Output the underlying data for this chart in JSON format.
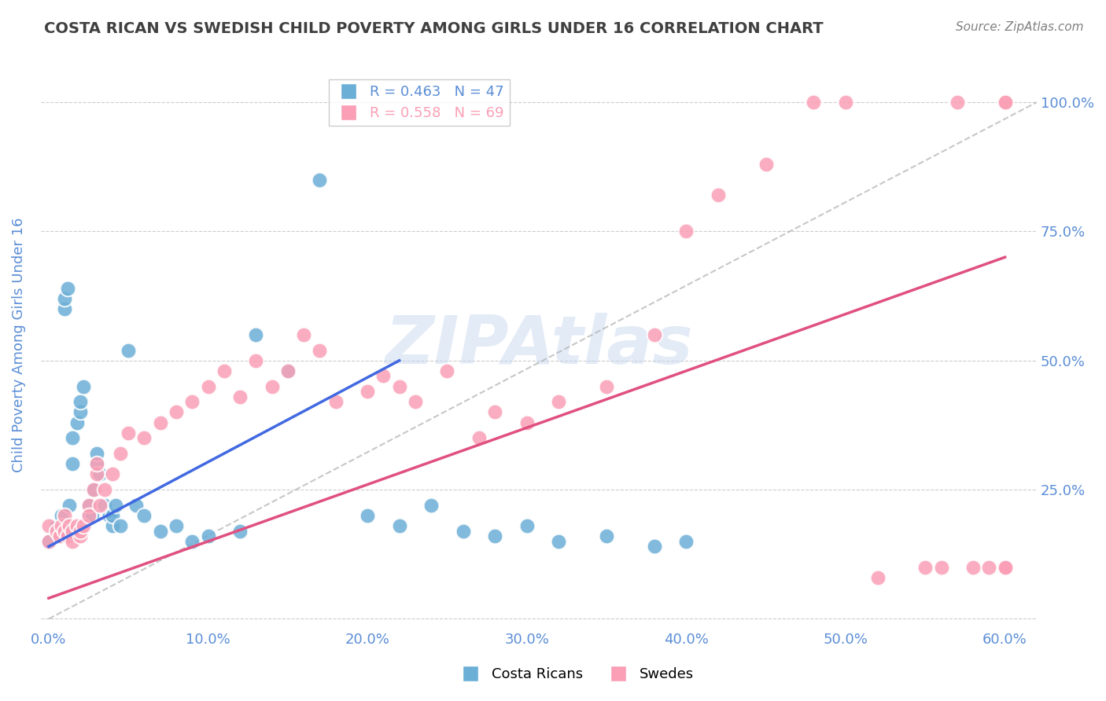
{
  "title": "COSTA RICAN VS SWEDISH CHILD POVERTY AMONG GIRLS UNDER 16 CORRELATION CHART",
  "source": "Source: ZipAtlas.com",
  "ylabel": "Child Poverty Among Girls Under 16",
  "xlabel_ticks": [
    0.0,
    0.1,
    0.2,
    0.3,
    0.4,
    0.5,
    0.6
  ],
  "xlabel_labels": [
    "0.0%",
    "10.0%",
    "20.0%",
    "30.0%",
    "40.0%",
    "50.0%",
    "60.0%"
  ],
  "xlim": [
    -0.005,
    0.62
  ],
  "ylim": [
    -0.02,
    1.08
  ],
  "yticks": [
    0.0,
    0.25,
    0.5,
    0.75,
    1.0
  ],
  "ytick_labels": [
    "",
    "25.0%",
    "50.0%",
    "75.0%",
    "100.0%"
  ],
  "cr_color": "#6baed6",
  "sw_color": "#fa9fb5",
  "cr_R": 0.463,
  "cr_N": 47,
  "sw_R": 0.558,
  "sw_N": 69,
  "blue_line_color": "#4169E1",
  "pink_line_color": "#e05080",
  "grid_color": "#c0c0c0",
  "title_color": "#404040",
  "axis_color": "#5b8ed6",
  "watermark_color": "#c8d8f0",
  "cr_points_x": [
    0.0,
    0.005,
    0.008,
    0.01,
    0.01,
    0.012,
    0.013,
    0.015,
    0.015,
    0.018,
    0.02,
    0.02,
    0.022,
    0.025,
    0.025,
    0.027,
    0.028,
    0.03,
    0.03,
    0.032,
    0.035,
    0.038,
    0.04,
    0.04,
    0.042,
    0.045,
    0.05,
    0.055,
    0.06,
    0.07,
    0.08,
    0.09,
    0.1,
    0.12,
    0.13,
    0.15,
    0.17,
    0.2,
    0.22,
    0.24,
    0.26,
    0.28,
    0.3,
    0.32,
    0.35,
    0.38,
    0.4
  ],
  "cr_points_y": [
    0.15,
    0.18,
    0.2,
    0.6,
    0.62,
    0.64,
    0.22,
    0.3,
    0.35,
    0.38,
    0.4,
    0.42,
    0.45,
    0.2,
    0.22,
    0.2,
    0.25,
    0.3,
    0.32,
    0.28,
    0.22,
    0.2,
    0.18,
    0.2,
    0.22,
    0.18,
    0.52,
    0.22,
    0.2,
    0.17,
    0.18,
    0.15,
    0.16,
    0.17,
    0.55,
    0.48,
    0.85,
    0.2,
    0.18,
    0.22,
    0.17,
    0.16,
    0.18,
    0.15,
    0.16,
    0.14,
    0.15
  ],
  "sw_points_x": [
    0.0,
    0.0,
    0.005,
    0.007,
    0.008,
    0.01,
    0.01,
    0.012,
    0.013,
    0.015,
    0.015,
    0.018,
    0.02,
    0.02,
    0.022,
    0.025,
    0.025,
    0.028,
    0.03,
    0.03,
    0.032,
    0.035,
    0.04,
    0.045,
    0.05,
    0.06,
    0.07,
    0.08,
    0.09,
    0.1,
    0.11,
    0.12,
    0.13,
    0.14,
    0.15,
    0.16,
    0.17,
    0.18,
    0.2,
    0.21,
    0.22,
    0.23,
    0.25,
    0.27,
    0.28,
    0.3,
    0.32,
    0.35,
    0.38,
    0.4,
    0.42,
    0.45,
    0.48,
    0.5,
    0.52,
    0.55,
    0.56,
    0.57,
    0.58,
    0.59,
    0.6,
    0.6,
    0.6,
    0.6,
    0.6,
    0.6,
    0.6,
    0.6,
    0.6
  ],
  "sw_points_y": [
    0.15,
    0.18,
    0.17,
    0.16,
    0.18,
    0.2,
    0.17,
    0.16,
    0.18,
    0.17,
    0.15,
    0.18,
    0.16,
    0.17,
    0.18,
    0.22,
    0.2,
    0.25,
    0.28,
    0.3,
    0.22,
    0.25,
    0.28,
    0.32,
    0.36,
    0.35,
    0.38,
    0.4,
    0.42,
    0.45,
    0.48,
    0.43,
    0.5,
    0.45,
    0.48,
    0.55,
    0.52,
    0.42,
    0.44,
    0.47,
    0.45,
    0.42,
    0.48,
    0.35,
    0.4,
    0.38,
    0.42,
    0.45,
    0.55,
    0.75,
    0.82,
    0.88,
    1.0,
    1.0,
    0.08,
    0.1,
    0.1,
    1.0,
    0.1,
    0.1,
    1.0,
    1.0,
    0.1,
    0.1,
    0.1,
    0.1,
    0.1,
    0.1,
    0.1
  ]
}
